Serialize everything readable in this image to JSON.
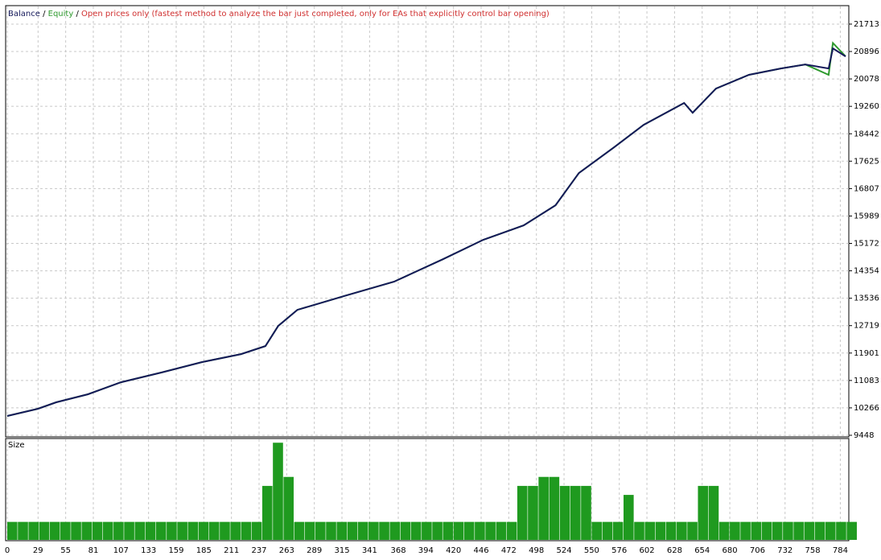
{
  "chart_data": [
    {
      "type": "line",
      "legend_separator": "/",
      "model_note": "Open prices only (fastest method to analyze the bar just completed, only for EAs that explicitly control bar opening)",
      "xlim": [
        0,
        792
      ],
      "ylim": [
        9448,
        22240
      ],
      "yticks": [
        9448,
        10266,
        11083,
        11901,
        12719,
        13536,
        14354,
        15172,
        15989,
        16807,
        17625,
        18442,
        19260,
        20078,
        20896,
        21713
      ],
      "grid": true,
      "series": [
        {
          "name": "Balance",
          "color": "#15195a",
          "x": [
            0,
            29,
            46,
            76,
            107,
            145,
            183,
            220,
            243,
            255,
            273,
            319,
            364,
            410,
            448,
            486,
            516,
            538,
            569,
            599,
            637,
            645,
            667,
            698,
            728,
            751,
            773,
            777,
            789
          ],
          "values": [
            10024,
            10240,
            10432,
            10672,
            11030,
            11320,
            11630,
            11870,
            12110,
            12710,
            13190,
            13620,
            14030,
            14700,
            15280,
            15710,
            16310,
            17270,
            17990,
            18710,
            19360,
            19070,
            19790,
            20200,
            20390,
            20510,
            20390,
            20990,
            20750
          ]
        },
        {
          "name": "Equity",
          "color": "#2e9a2e",
          "x": [
            0,
            29,
            46,
            76,
            107,
            145,
            183,
            220,
            243,
            255,
            273,
            319,
            364,
            410,
            448,
            486,
            516,
            538,
            569,
            599,
            637,
            645,
            667,
            698,
            728,
            751,
            773,
            777,
            789
          ],
          "values": [
            10024,
            10240,
            10432,
            10672,
            11030,
            11320,
            11630,
            11870,
            12110,
            12710,
            13190,
            13620,
            14030,
            14700,
            15280,
            15710,
            16310,
            17270,
            17990,
            18710,
            19360,
            19070,
            19790,
            20200,
            20390,
            20510,
            20200,
            21150,
            20750
          ]
        }
      ]
    },
    {
      "type": "bar",
      "title": "Size",
      "color": "#1f9a1f",
      "xlim": [
        0,
        792
      ],
      "ylim": [
        0,
        5.5
      ],
      "xticks": [
        0,
        29,
        55,
        81,
        107,
        133,
        159,
        185,
        211,
        237,
        263,
        289,
        315,
        341,
        368,
        394,
        420,
        446,
        472,
        498,
        524,
        550,
        576,
        602,
        628,
        654,
        680,
        706,
        732,
        758,
        784
      ],
      "x": [
        0,
        10,
        20,
        30,
        40,
        50,
        60,
        70,
        80,
        90,
        100,
        110,
        120,
        130,
        140,
        150,
        160,
        170,
        180,
        190,
        200,
        210,
        220,
        230,
        240,
        250,
        260,
        270,
        280,
        290,
        300,
        310,
        320,
        330,
        340,
        350,
        360,
        370,
        380,
        390,
        400,
        410,
        420,
        430,
        440,
        450,
        460,
        470,
        480,
        490,
        500,
        510,
        520,
        530,
        540,
        550,
        560,
        570,
        580,
        590,
        600,
        610,
        620,
        630,
        640,
        650,
        660,
        670,
        680,
        690,
        700,
        710,
        720,
        730,
        740,
        750,
        760,
        770,
        780,
        790
      ],
      "values": [
        1,
        1,
        1,
        1,
        1,
        1,
        1,
        1,
        1,
        1,
        1,
        1,
        1,
        1,
        1,
        1,
        1,
        1,
        1,
        1,
        1,
        1,
        1,
        1,
        3,
        5.4,
        3.5,
        1,
        1,
        1,
        1,
        1,
        1,
        1,
        1,
        1,
        1,
        1,
        1,
        1,
        1,
        1,
        1,
        1,
        1,
        1,
        1,
        1,
        3,
        3,
        3.5,
        3.5,
        3,
        3,
        3,
        1,
        1,
        1,
        2.5,
        1,
        1,
        1,
        1,
        1,
        1,
        3,
        3,
        1,
        1,
        1,
        1,
        1,
        1,
        1,
        1,
        1,
        1,
        1,
        1,
        1
      ]
    }
  ]
}
